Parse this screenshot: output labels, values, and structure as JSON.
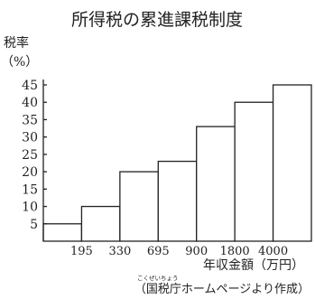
{
  "chart_data": {
    "type": "bar",
    "title": "所得税の累進課税制度",
    "ylabel_line1": "税率",
    "ylabel_line2": "（%）",
    "xlabel": "年収金額（万円）",
    "y_ticks": [
      5,
      10,
      15,
      20,
      25,
      30,
      35,
      40,
      45
    ],
    "ylim": [
      0,
      45
    ],
    "x_ticks": [
      "195",
      "330",
      "695",
      "900",
      "1800",
      "4000"
    ],
    "brackets": [
      {
        "lower": "0",
        "upper": "195",
        "rate": 5
      },
      {
        "lower": "195",
        "upper": "330",
        "rate": 10
      },
      {
        "lower": "330",
        "upper": "695",
        "rate": 20
      },
      {
        "lower": "695",
        "upper": "900",
        "rate": 23
      },
      {
        "lower": "900",
        "upper": "1800",
        "rate": 33
      },
      {
        "lower": "1800",
        "upper": "4000",
        "rate": 40
      },
      {
        "lower": "4000",
        "upper": "",
        "rate": 45
      }
    ],
    "grid": false,
    "source": "（国税庁ホームページより作成）",
    "source_ruby": "こくぜいちょう"
  }
}
